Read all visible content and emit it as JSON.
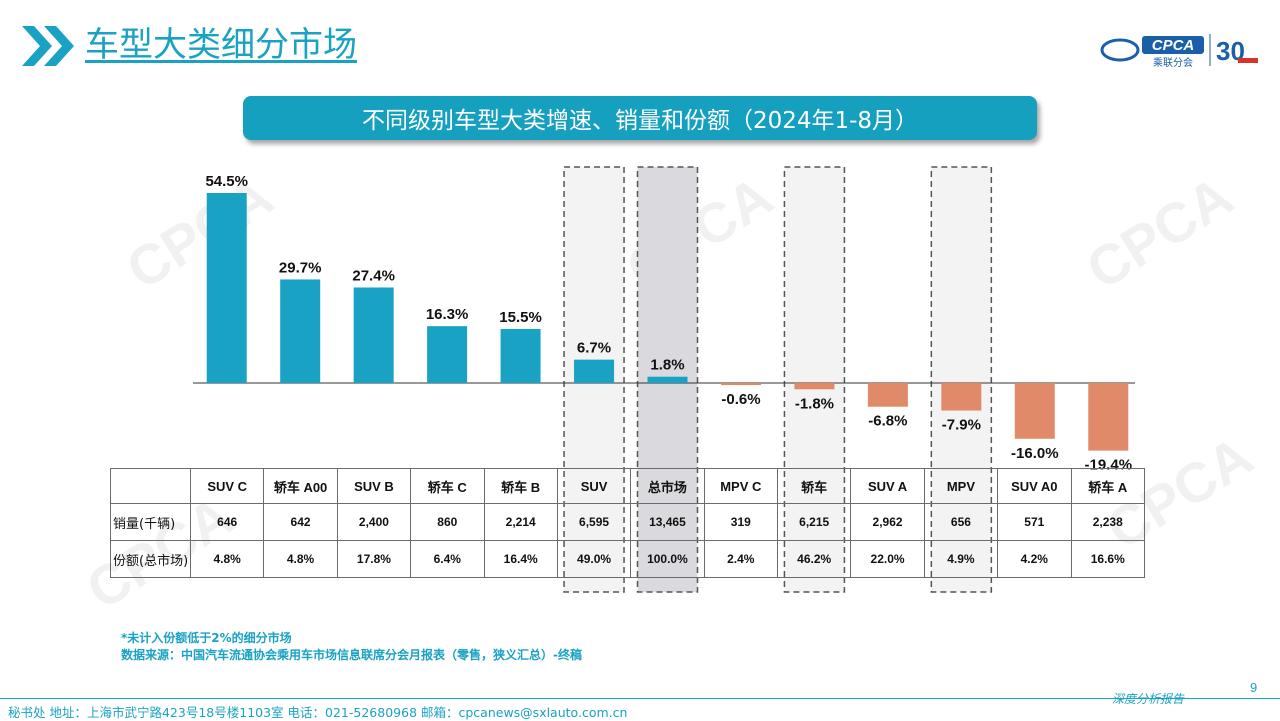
{
  "header": {
    "title": "车型大类细分市场",
    "logo_text": "CPCA",
    "logo_subtext": "乘联分会",
    "logo_badge": "30"
  },
  "watermark_text": "CPCA",
  "banner": {
    "title": "不同级别车型大类增速、销量和份额（2024年1-8月）"
  },
  "chart_data": {
    "type": "bar",
    "categories": [
      "SUV C",
      "轿车 A00",
      "SUV B",
      "轿车 C",
      "轿车 B",
      "SUV",
      "总市场",
      "MPV C",
      "轿车",
      "SUV A",
      "MPV",
      "SUV A0",
      "轿车 A"
    ],
    "values": [
      54.5,
      29.7,
      27.4,
      16.3,
      15.5,
      6.7,
      1.8,
      -0.6,
      -1.8,
      -6.8,
      -7.9,
      -16.0,
      -19.4
    ],
    "value_labels": [
      "54.5%",
      "29.7%",
      "27.4%",
      "16.3%",
      "15.5%",
      "6.7%",
      "1.8%",
      "-0.6%",
      "-1.8%",
      "-6.8%",
      "-7.9%",
      "-16.0%",
      "-19.4%"
    ],
    "highlighted": [
      "SUV",
      "总市场",
      "轿车",
      "MPV"
    ],
    "colors": {
      "positive": "#1aa2c4",
      "negative": "#e08a6a",
      "highlight_fill": "#eeeeee",
      "total_fill": "#d9d9de",
      "highlight_border": "#555555"
    },
    "title": "",
    "xlabel": "",
    "ylabel": "",
    "grid": false
  },
  "table": {
    "row_labels": [
      "销量(千辆)",
      "份额(总市场)"
    ],
    "sales": [
      "646",
      "642",
      "2,400",
      "860",
      "2,214",
      "6,595",
      "13,465",
      "319",
      "6,215",
      "2,962",
      "656",
      "571",
      "2,238"
    ],
    "shares": [
      "4.8%",
      "4.8%",
      "17.8%",
      "6.4%",
      "16.4%",
      "49.0%",
      "100.0%",
      "2.4%",
      "46.2%",
      "22.0%",
      "4.9%",
      "4.2%",
      "16.6%"
    ]
  },
  "footnotes": {
    "note": "*未计入份额低于2%的细分市场",
    "source": "数据来源：中国汽车流通协会乘用车市场信息联席分会月报表（零售，狭义汇总）-终稿"
  },
  "footer": {
    "contact": "秘书处 地址：上海市武宁路423号18号楼1103室 电话：021-52680968 邮箱：cpcanews@sxlauto.com.cn",
    "tag": "深度分析报告",
    "page_number": "9"
  }
}
